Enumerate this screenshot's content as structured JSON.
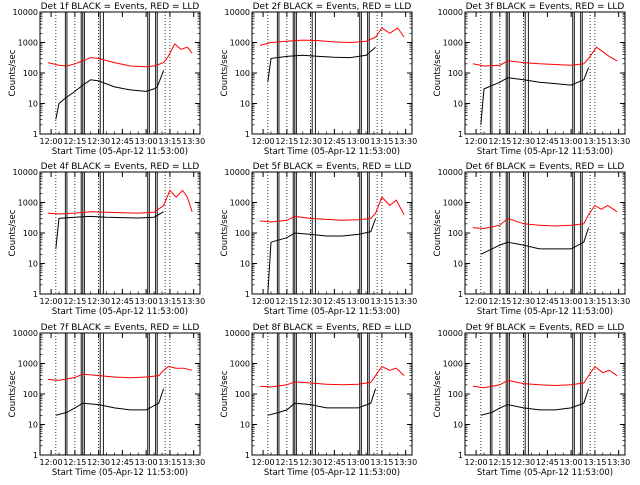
{
  "colors": {
    "events": "#000000",
    "lld": "#ff0000",
    "background": "#ffffff"
  },
  "chart_data": [
    {
      "type": "line",
      "title": "Det 1f BLACK = Events, RED = LLD",
      "xlabel": "Start Time (05-Apr-12 11:53:00)",
      "ylabel": "Counts/sec",
      "x_ticks": [
        "12:00",
        "12:15",
        "12:30",
        "12:45",
        "13:00",
        "13:15",
        "13:30"
      ],
      "y_ticks": [
        "1",
        "10",
        "100",
        "1000",
        "10000"
      ],
      "y_scale": "log",
      "ylim": [
        1,
        10000
      ],
      "series": [
        {
          "name": "BLACK = Events",
          "color": "#000000",
          "x": [
            "12:03",
            "12:05",
            "12:09",
            "12:15",
            "12:20",
            "12:25",
            "12:30",
            "12:40",
            "12:50",
            "13:00",
            "13:05",
            "13:07",
            "13:11"
          ],
          "values": [
            3,
            10,
            15,
            25,
            40,
            60,
            55,
            35,
            28,
            25,
            30,
            35,
            120
          ]
        },
        {
          "name": "RED = LLD",
          "color": "#ff0000",
          "x": [
            "11:58",
            "12:05",
            "12:10",
            "12:15",
            "12:20",
            "12:25",
            "12:30",
            "12:40",
            "12:50",
            "13:00",
            "13:05",
            "13:11",
            "13:14",
            "13:18",
            "13:22",
            "13:26",
            "13:29"
          ],
          "values": [
            220,
            180,
            170,
            200,
            250,
            320,
            300,
            220,
            170,
            160,
            170,
            220,
            350,
            900,
            600,
            700,
            450
          ]
        }
      ],
      "events_only": [
        "12:03",
        "12:09",
        "12:15",
        "12:30",
        "12:50",
        "13:00",
        "13:15"
      ]
    },
    {
      "type": "line",
      "title": "Det 2f BLACK = Events, RED = LLD",
      "xlabel": "Start Time (05-Apr-12 11:53:00)",
      "ylabel": "Counts/sec",
      "x_ticks": [
        "12:00",
        "12:15",
        "12:30",
        "12:45",
        "13:00",
        "13:15",
        "13:30"
      ],
      "y_ticks": [
        "1",
        "10",
        "100",
        "1000",
        "10000"
      ],
      "y_scale": "log",
      "ylim": [
        1,
        10000
      ],
      "series": [
        {
          "name": "BLACK = Events",
          "color": "#000000",
          "x": [
            "12:03",
            "12:05",
            "12:15",
            "12:25",
            "12:35",
            "12:45",
            "12:55",
            "13:05",
            "13:11"
          ],
          "values": [
            50,
            300,
            350,
            380,
            350,
            330,
            320,
            380,
            700
          ]
        },
        {
          "name": "RED = LLD",
          "color": "#ff0000",
          "x": [
            "11:58",
            "12:05",
            "12:15",
            "12:25",
            "12:35",
            "12:45",
            "12:55",
            "13:05",
            "13:11",
            "13:15",
            "13:20",
            "13:25",
            "13:29"
          ],
          "values": [
            800,
            1000,
            1100,
            1200,
            1150,
            1050,
            1000,
            1100,
            1500,
            3000,
            2000,
            3000,
            1500
          ]
        }
      ]
    },
    {
      "type": "line",
      "title": "Det 3f BLACK = Events, RED = LLD",
      "xlabel": "Start Time (05-Apr-12 11:53:00)",
      "ylabel": "Counts/sec",
      "x_ticks": [
        "12:00",
        "12:15",
        "12:30",
        "12:45",
        "13:00",
        "13:15",
        "13:30"
      ],
      "y_ticks": [
        "1",
        "10",
        "100",
        "1000",
        "10000"
      ],
      "y_scale": "log",
      "ylim": [
        1,
        10000
      ],
      "series": [
        {
          "name": "BLACK = Events",
          "color": "#000000",
          "x": [
            "12:03",
            "12:05",
            "12:15",
            "12:20",
            "12:30",
            "12:40",
            "12:50",
            "13:00",
            "13:08",
            "13:11"
          ],
          "values": [
            2,
            30,
            50,
            70,
            60,
            50,
            45,
            40,
            60,
            150
          ]
        },
        {
          "name": "RED = LLD",
          "color": "#ff0000",
          "x": [
            "11:58",
            "12:05",
            "12:15",
            "12:20",
            "12:30",
            "12:40",
            "12:50",
            "13:00",
            "13:08",
            "13:11",
            "13:16",
            "13:20",
            "13:24",
            "13:29"
          ],
          "values": [
            200,
            170,
            180,
            250,
            220,
            200,
            190,
            180,
            200,
            300,
            700,
            500,
            350,
            250
          ]
        }
      ]
    },
    {
      "type": "line",
      "title": "Det 4f BLACK = Events, RED = LLD",
      "xlabel": "Start Time (05-Apr-12 11:53:00)",
      "ylabel": "Counts/sec",
      "x_ticks": [
        "12:00",
        "12:15",
        "12:30",
        "12:45",
        "13:00",
        "13:15",
        "13:30"
      ],
      "y_ticks": [
        "1",
        "10",
        "100",
        "1000",
        "10000"
      ],
      "y_scale": "log",
      "ylim": [
        1,
        10000
      ],
      "series": [
        {
          "name": "BLACK = Events",
          "color": "#000000",
          "x": [
            "12:03",
            "12:05",
            "12:15",
            "12:25",
            "12:35",
            "12:45",
            "12:55",
            "13:05",
            "13:11"
          ],
          "values": [
            30,
            300,
            330,
            350,
            330,
            320,
            310,
            330,
            500
          ]
        },
        {
          "name": "RED = LLD",
          "color": "#ff0000",
          "x": [
            "11:58",
            "12:05",
            "12:15",
            "12:25",
            "12:35",
            "12:45",
            "12:55",
            "13:05",
            "13:11",
            "13:15",
            "13:19",
            "13:23",
            "13:26",
            "13:29"
          ],
          "values": [
            450,
            420,
            450,
            500,
            480,
            460,
            450,
            480,
            800,
            2500,
            1500,
            2500,
            1500,
            500
          ]
        }
      ]
    },
    {
      "type": "line",
      "title": "Det 5f BLACK = Events, RED = LLD",
      "xlabel": "Start Time (05-Apr-12 11:53:00)",
      "ylabel": "Counts/sec",
      "x_ticks": [
        "12:00",
        "12:15",
        "12:30",
        "12:45",
        "13:00",
        "13:15",
        "13:30"
      ],
      "y_ticks": [
        "1",
        "10",
        "100",
        "1000",
        "10000"
      ],
      "y_scale": "log",
      "ylim": [
        1,
        10000
      ],
      "series": [
        {
          "name": "BLACK = Events",
          "color": "#000000",
          "x": [
            "12:03",
            "12:05",
            "12:15",
            "12:20",
            "12:30",
            "12:40",
            "12:50",
            "13:00",
            "13:08",
            "13:11"
          ],
          "values": [
            1,
            50,
            70,
            100,
            90,
            80,
            80,
            90,
            110,
            300
          ]
        },
        {
          "name": "RED = LLD",
          "color": "#ff0000",
          "x": [
            "11:58",
            "12:05",
            "12:15",
            "12:20",
            "12:30",
            "12:40",
            "12:50",
            "13:00",
            "13:08",
            "13:11",
            "13:15",
            "13:20",
            "13:24",
            "13:29"
          ],
          "values": [
            250,
            230,
            260,
            350,
            300,
            280,
            260,
            270,
            300,
            450,
            1500,
            800,
            1200,
            400
          ]
        }
      ]
    },
    {
      "type": "line",
      "title": "Det 6f BLACK = Events, RED = LLD",
      "xlabel": "Start Time (05-Apr-12 11:53:00)",
      "ylabel": "Counts/sec",
      "x_ticks": [
        "12:00",
        "12:15",
        "12:30",
        "12:45",
        "13:00",
        "13:15",
        "13:30"
      ],
      "y_ticks": [
        "1",
        "10",
        "100",
        "1000",
        "10000"
      ],
      "y_scale": "log",
      "ylim": [
        1,
        10000
      ],
      "series": [
        {
          "name": "BLACK = Events",
          "color": "#000000",
          "x": [
            "12:03",
            "12:10",
            "12:15",
            "12:20",
            "12:30",
            "12:40",
            "12:50",
            "13:00",
            "13:08",
            "13:11"
          ],
          "values": [
            20,
            30,
            40,
            50,
            40,
            30,
            30,
            30,
            50,
            150
          ]
        },
        {
          "name": "RED = LLD",
          "color": "#ff0000",
          "x": [
            "11:58",
            "12:05",
            "12:15",
            "12:20",
            "12:30",
            "12:40",
            "12:50",
            "13:00",
            "13:08",
            "13:11",
            "13:15",
            "13:19",
            "13:23",
            "13:29"
          ],
          "values": [
            150,
            140,
            180,
            300,
            200,
            180,
            170,
            180,
            200,
            400,
            800,
            600,
            800,
            500
          ]
        }
      ]
    },
    {
      "type": "line",
      "title": "Det 7f BLACK = Events, RED = LLD",
      "xlabel": "Start Time (05-Apr-12 11:53:00)",
      "ylabel": "Counts/sec",
      "x_ticks": [
        "12:00",
        "12:15",
        "12:30",
        "12:45",
        "13:00",
        "13:15",
        "13:30"
      ],
      "y_ticks": [
        "1",
        "10",
        "100",
        "1000",
        "10000"
      ],
      "y_scale": "log",
      "ylim": [
        1,
        10000
      ],
      "series": [
        {
          "name": "BLACK = Events",
          "color": "#000000",
          "x": [
            "12:03",
            "12:10",
            "12:15",
            "12:20",
            "12:30",
            "12:40",
            "12:50",
            "13:00",
            "13:08",
            "13:11"
          ],
          "values": [
            20,
            25,
            35,
            50,
            45,
            35,
            30,
            30,
            50,
            150
          ]
        },
        {
          "name": "RED = LLD",
          "color": "#ff0000",
          "x": [
            "11:58",
            "12:05",
            "12:15",
            "12:20",
            "12:30",
            "12:40",
            "12:50",
            "13:00",
            "13:08",
            "13:11",
            "13:14",
            "13:19",
            "13:24",
            "13:29"
          ],
          "values": [
            300,
            280,
            350,
            450,
            400,
            360,
            340,
            360,
            400,
            600,
            800,
            700,
            700,
            600
          ]
        }
      ]
    },
    {
      "type": "line",
      "title": "Det 8f BLACK = Events, RED = LLD",
      "xlabel": "Start Time (05-Apr-12 11:53:00)",
      "ylabel": "Counts/sec",
      "x_ticks": [
        "12:00",
        "12:15",
        "12:30",
        "12:45",
        "13:00",
        "13:15",
        "13:30"
      ],
      "y_ticks": [
        "1",
        "10",
        "100",
        "1000",
        "10000"
      ],
      "y_scale": "log",
      "ylim": [
        1,
        10000
      ],
      "series": [
        {
          "name": "BLACK = Events",
          "color": "#000000",
          "x": [
            "12:03",
            "12:10",
            "12:15",
            "12:20",
            "12:30",
            "12:40",
            "12:50",
            "13:00",
            "13:08",
            "13:11"
          ],
          "values": [
            20,
            25,
            30,
            50,
            45,
            35,
            35,
            35,
            50,
            150
          ]
        },
        {
          "name": "RED = LLD",
          "color": "#ff0000",
          "x": [
            "11:58",
            "12:05",
            "12:15",
            "12:20",
            "12:30",
            "12:40",
            "12:50",
            "13:00",
            "13:08",
            "13:11",
            "13:15",
            "13:20",
            "13:24",
            "13:29"
          ],
          "values": [
            180,
            170,
            200,
            250,
            230,
            210,
            200,
            210,
            240,
            400,
            800,
            600,
            700,
            400
          ]
        }
      ]
    },
    {
      "type": "line",
      "title": "Det 9f BLACK = Events, RED = LLD",
      "xlabel": "Start Time (05-Apr-12 11:53:00)",
      "ylabel": "Counts/sec",
      "x_ticks": [
        "12:00",
        "12:15",
        "12:30",
        "12:45",
        "13:00",
        "13:15",
        "13:30"
      ],
      "y_ticks": [
        "1",
        "10",
        "100",
        "1000",
        "10000"
      ],
      "y_scale": "log",
      "ylim": [
        1,
        10000
      ],
      "series": [
        {
          "name": "BLACK = Events",
          "color": "#000000",
          "x": [
            "12:03",
            "12:10",
            "12:15",
            "12:20",
            "12:30",
            "12:40",
            "12:50",
            "13:00",
            "13:08",
            "13:11"
          ],
          "values": [
            20,
            25,
            35,
            45,
            35,
            30,
            30,
            35,
            50,
            150
          ]
        },
        {
          "name": "RED = LLD",
          "color": "#ff0000",
          "x": [
            "11:58",
            "12:05",
            "12:15",
            "12:20",
            "12:30",
            "12:40",
            "12:50",
            "13:00",
            "13:08",
            "13:11",
            "13:15",
            "13:20",
            "13:24",
            "13:29"
          ],
          "values": [
            180,
            160,
            200,
            280,
            220,
            200,
            190,
            200,
            230,
            400,
            800,
            500,
            600,
            400
          ]
        }
      ]
    }
  ]
}
